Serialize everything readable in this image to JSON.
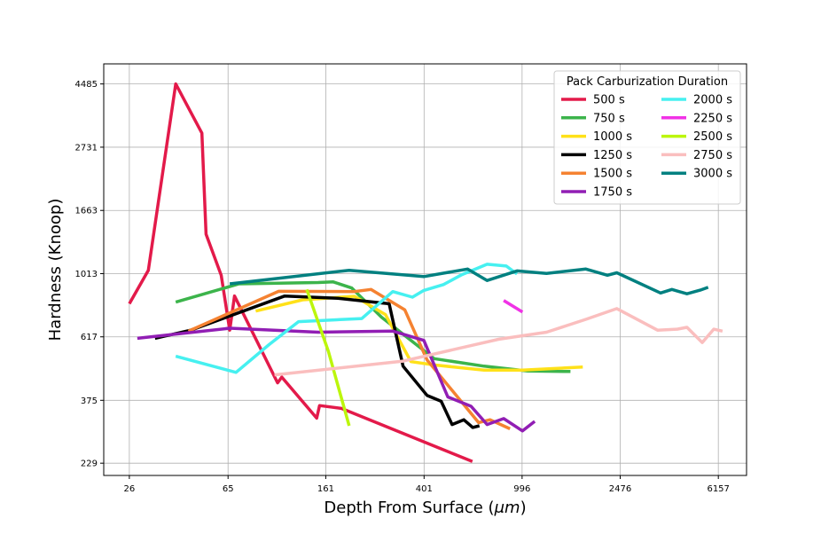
{
  "chart_data": {
    "type": "line",
    "title": "",
    "xlabel_main": "Depth From Surface (",
    "xlabel_unit": "μm",
    "xlabel_close": ")",
    "ylabel": "Hardness (Knoop)",
    "x_scale": "log",
    "y_scale": "log",
    "xlim": [
      20.5,
      8000
    ],
    "ylim": [
      208,
      5250
    ],
    "x_ticks": [
      26,
      65,
      161,
      401,
      996,
      2476,
      6157
    ],
    "x_tick_labels": [
      "26",
      "65",
      "161",
      "401",
      "996",
      "2476",
      "6157"
    ],
    "y_ticks": [
      229,
      375,
      617,
      1013,
      1663,
      2731,
      4485
    ],
    "y_tick_labels": [
      "229",
      "375",
      "617",
      "1013",
      "1663",
      "2731",
      "4485"
    ],
    "grid": true,
    "legend_title": "Pack Carburization Duration",
    "legend_position": "top-right",
    "legend_columns": 2,
    "series": [
      {
        "name": "500 s",
        "color": "#e31a4a",
        "points": [
          [
            26,
            800
          ],
          [
            31,
            1040
          ],
          [
            40,
            4485
          ],
          [
            51,
            3050
          ],
          [
            53,
            1380
          ],
          [
            61,
            1000
          ],
          [
            66,
            650
          ],
          [
            69,
            850
          ],
          [
            103,
            430
          ],
          [
            107,
            450
          ],
          [
            148,
            326
          ],
          [
            152,
            360
          ],
          [
            186,
            352
          ],
          [
            628,
            232
          ]
        ]
      },
      {
        "name": "750 s",
        "color": "#3cb44b",
        "points": [
          [
            40,
            810
          ],
          [
            72,
            935
          ],
          [
            150,
            945
          ],
          [
            172,
            950
          ],
          [
            205,
            905
          ],
          [
            270,
            720
          ],
          [
            440,
            520
          ],
          [
            700,
            490
          ],
          [
            1050,
            472
          ],
          [
            1560,
            470
          ]
        ]
      },
      {
        "name": "1000 s",
        "color": "#ffe119",
        "points": [
          [
            84,
            755
          ],
          [
            130,
            825
          ],
          [
            210,
            848
          ],
          [
            280,
            735
          ],
          [
            355,
            508
          ],
          [
            440,
            495
          ],
          [
            700,
            475
          ],
          [
            1000,
            475
          ],
          [
            1750,
            487
          ]
        ]
      },
      {
        "name": "1250 s",
        "color": "#000000",
        "points": [
          [
            33,
            610
          ],
          [
            46,
            650
          ],
          [
            110,
            850
          ],
          [
            180,
            835
          ],
          [
            270,
            805
          ],
          [
            290,
            800
          ],
          [
            330,
            490
          ],
          [
            412,
            390
          ],
          [
            470,
            372
          ],
          [
            520,
            310
          ],
          [
            580,
            322
          ],
          [
            630,
            303
          ],
          [
            670,
            307
          ]
        ]
      },
      {
        "name": "1500 s",
        "color": "#f58231",
        "points": [
          [
            45,
            645
          ],
          [
            104,
            882
          ],
          [
            210,
            880
          ],
          [
            245,
            895
          ],
          [
            335,
            763
          ],
          [
            412,
            515
          ],
          [
            665,
            315
          ],
          [
            740,
            322
          ],
          [
            890,
            300
          ]
        ]
      },
      {
        "name": "1750 s",
        "color": "#911eb4",
        "points": [
          [
            28,
            610
          ],
          [
            66,
            660
          ],
          [
            150,
            640
          ],
          [
            300,
            645
          ],
          [
            400,
            600
          ],
          [
            500,
            385
          ],
          [
            620,
            358
          ],
          [
            720,
            310
          ],
          [
            840,
            325
          ],
          [
            1000,
            295
          ],
          [
            1120,
            318
          ]
        ]
      },
      {
        "name": "2000 s",
        "color": "#46f0f0",
        "points": [
          [
            40,
            530
          ],
          [
            70,
            467
          ],
          [
            95,
            580
          ],
          [
            125,
            695
          ],
          [
            225,
            712
          ],
          [
            300,
            880
          ],
          [
            360,
            842
          ],
          [
            400,
            888
          ],
          [
            480,
            930
          ],
          [
            570,
            1005
          ],
          [
            720,
            1090
          ],
          [
            860,
            1075
          ],
          [
            950,
            1010
          ]
        ]
      },
      {
        "name": "2250 s",
        "color": "#f032e6",
        "points": [
          [
            840,
            820
          ],
          [
            1000,
            750
          ]
        ]
      },
      {
        "name": "2500 s",
        "color": "#bcf60c",
        "points": [
          [
            135,
            895
          ],
          [
            165,
            550
          ],
          [
            200,
            307
          ]
        ]
      },
      {
        "name": "2750 s",
        "color": "#fabebe",
        "points": [
          [
            100,
            458
          ],
          [
            330,
            510
          ],
          [
            800,
            605
          ],
          [
            1250,
            640
          ],
          [
            1800,
            708
          ],
          [
            2400,
            770
          ],
          [
            3500,
            650
          ],
          [
            4200,
            655
          ],
          [
            4600,
            665
          ],
          [
            5300,
            590
          ],
          [
            5900,
            655
          ],
          [
            6400,
            645
          ]
        ]
      },
      {
        "name": "3000 s",
        "color": "#008080",
        "points": [
          [
            66,
            935
          ],
          [
            200,
            1040
          ],
          [
            400,
            990
          ],
          [
            600,
            1050
          ],
          [
            720,
            960
          ],
          [
            950,
            1035
          ],
          [
            1250,
            1015
          ],
          [
            1800,
            1050
          ],
          [
            2200,
            1000
          ],
          [
            2400,
            1020
          ],
          [
            3600,
            870
          ],
          [
            4000,
            895
          ],
          [
            4600,
            865
          ],
          [
            5200,
            890
          ],
          [
            5600,
            910
          ]
        ]
      }
    ]
  }
}
